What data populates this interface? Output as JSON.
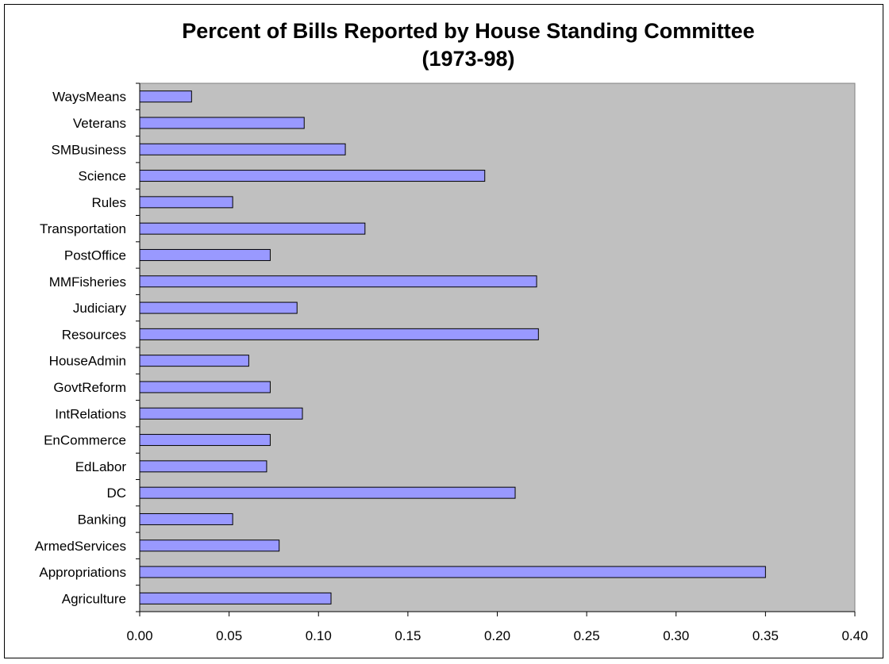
{
  "chart_data": {
    "type": "bar",
    "orientation": "horizontal",
    "title": "Percent of Bills Reported by House Standing Committee",
    "subtitle": "(1973-98)",
    "xlabel": "",
    "ylabel": "",
    "xlim": [
      0,
      0.4
    ],
    "x_ticks": [
      "0.00",
      "0.05",
      "0.10",
      "0.15",
      "0.20",
      "0.25",
      "0.30",
      "0.35",
      "0.40"
    ],
    "grid": false,
    "legend": "none",
    "categories": [
      "WaysMeans",
      "Veterans",
      "SMBusiness",
      "Science",
      "Rules",
      "Transportation",
      "PostOffice",
      "MMFisheries",
      "Judiciary",
      "Resources",
      "HouseAdmin",
      "GovtReform",
      "IntRelations",
      "EnCommerce",
      "EdLabor",
      "DC",
      "Banking",
      "ArmedServices",
      "Appropriations",
      "Agriculture"
    ],
    "values": [
      0.029,
      0.092,
      0.115,
      0.193,
      0.052,
      0.126,
      0.073,
      0.222,
      0.088,
      0.223,
      0.061,
      0.073,
      0.091,
      0.073,
      0.071,
      0.21,
      0.052,
      0.078,
      0.35,
      0.107
    ],
    "colors": {
      "bar_fill": "#9999ff",
      "bar_stroke": "#000000",
      "plot_bg": "#c0c0c0",
      "axis": "#000000"
    }
  }
}
